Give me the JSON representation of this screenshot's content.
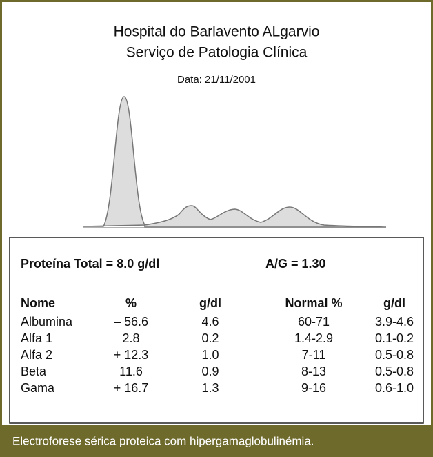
{
  "header": {
    "title": [
      "Hospital do Barlavento ALgarvio",
      "Serviço de Patologia Clínica"
    ],
    "date": "Data: 21/11/2001"
  },
  "summary": {
    "total": "Proteína Total = 8.0 g/dl",
    "ratio": "A/G = 1.30"
  },
  "table": {
    "columns": [
      "Nome",
      "%",
      "g/dl",
      "Normal %",
      "g/dl"
    ],
    "rows": [
      [
        "Albumina",
        "– 56.6",
        "4.6",
        "60-71",
        "3.9-4.6"
      ],
      [
        "Alfa 1",
        "2.8",
        "0.2",
        "1.4-2.9",
        "0.1-0.2"
      ],
      [
        "Alfa 2",
        "+ 12.3",
        "1.0",
        "7-11",
        "0.5-0.8"
      ],
      [
        "Beta",
        "11.6",
        "0.9",
        "8-13",
        "0.5-0.8"
      ],
      [
        "Gama",
        "+ 16.7",
        "1.3",
        "9-16",
        "0.6-1.0"
      ]
    ]
  },
  "caption": "Electroforese sérica proteica com hipergamaglobulinémia."
}
